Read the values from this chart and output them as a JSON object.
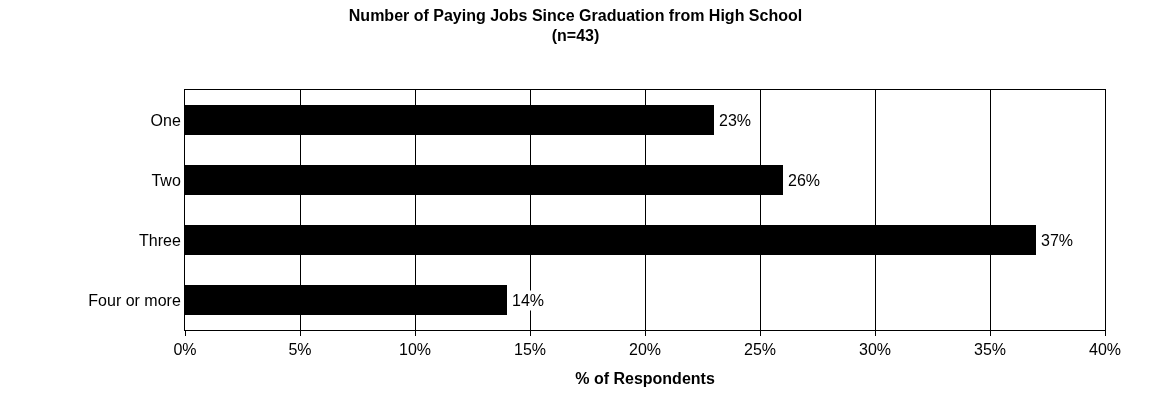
{
  "chart_data": {
    "type": "bar",
    "orientation": "horizontal",
    "title": "Number of Paying Jobs Since Graduation from High School\n(n=43)",
    "xlabel": "% of Respondents",
    "categories": [
      "One",
      "Two",
      "Three",
      "Four or more"
    ],
    "values": [
      23,
      26,
      37,
      14
    ],
    "color": "#000000",
    "value_labels": [
      "23%",
      "26%",
      "37%",
      "14%"
    ],
    "xlim": [
      0,
      40
    ],
    "xticks": [
      {
        "value": 0,
        "label": "0%"
      },
      {
        "value": 5,
        "label": "5%"
      },
      {
        "value": 10,
        "label": "10%"
      },
      {
        "value": 15,
        "label": "15%"
      },
      {
        "value": 20,
        "label": "20%"
      },
      {
        "value": 25,
        "label": "25%"
      },
      {
        "value": 30,
        "label": "30%"
      },
      {
        "value": 35,
        "label": "35%"
      },
      {
        "value": 40,
        "label": "40%"
      }
    ],
    "grid": "x"
  }
}
